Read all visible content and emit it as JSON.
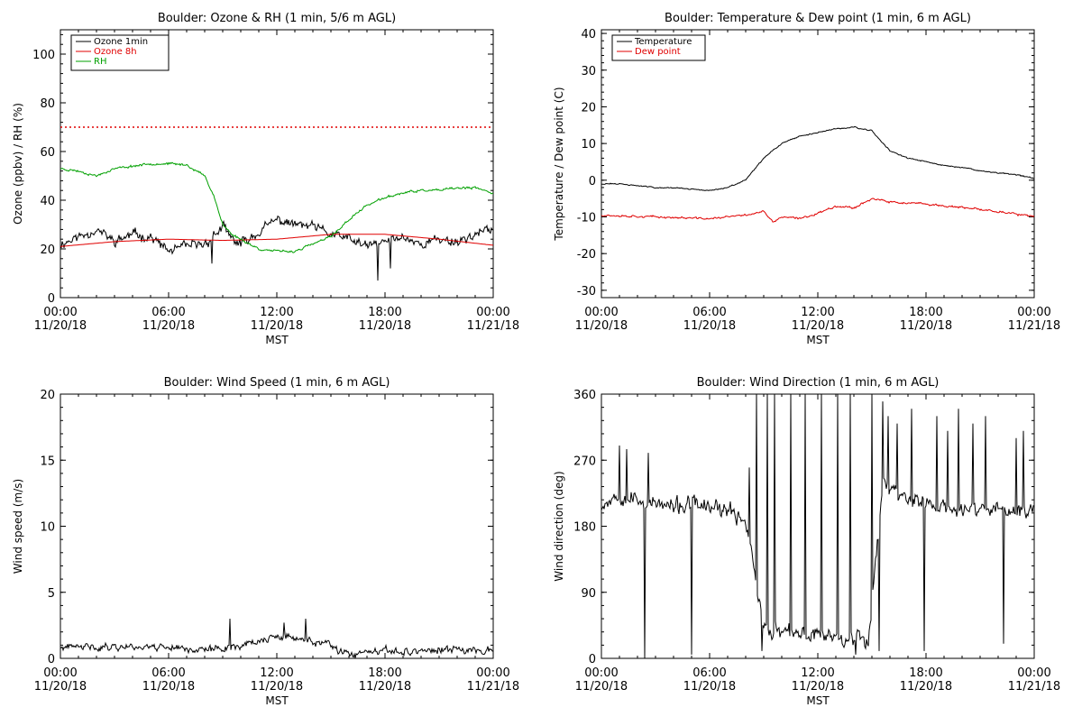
{
  "chart_data": [
    {
      "id": "ozone",
      "type": "line",
      "title": "Boulder: Ozone & RH (1 min, 5/6 m AGL)",
      "xlabel": "MST",
      "ylabel": "Ozone (ppbv) / RH (%)",
      "xlim": [
        0,
        24
      ],
      "ylim": [
        0,
        110
      ],
      "x_ticks": [
        0,
        6,
        12,
        18,
        24
      ],
      "x_tick_labels": [
        [
          "00:00",
          "11/20/18"
        ],
        [
          "06:00",
          "11/20/18"
        ],
        [
          "12:00",
          "11/20/18"
        ],
        [
          "18:00",
          "11/20/18"
        ],
        [
          "00:00",
          "11/21/18"
        ]
      ],
      "y_ticks": [
        0,
        20,
        40,
        60,
        80,
        100
      ],
      "grid": false,
      "legend": "top-left",
      "reference_line": {
        "y": 70,
        "style": "dotted",
        "color": "#e00000"
      },
      "series": [
        {
          "name": "Ozone 1min",
          "color": "#000000",
          "noise": 2.5,
          "seed": 11,
          "spikes": [
            [
              8.4,
              14
            ],
            [
              10.0,
              21
            ],
            [
              17.6,
              7
            ],
            [
              18.3,
              12
            ]
          ],
          "points": [
            [
              0,
              22
            ],
            [
              1,
              25
            ],
            [
              2,
              28
            ],
            [
              3,
              23
            ],
            [
              4,
              26
            ],
            [
              5,
              25
            ],
            [
              6,
              19
            ],
            [
              7,
              21
            ],
            [
              8,
              22
            ],
            [
              9,
              29
            ],
            [
              9.5,
              24
            ],
            [
              10,
              22
            ],
            [
              11,
              27
            ],
            [
              12,
              32
            ],
            [
              13,
              30
            ],
            [
              14,
              29
            ],
            [
              15,
              26
            ],
            [
              16,
              24
            ],
            [
              17,
              21
            ],
            [
              18,
              23
            ],
            [
              19,
              25
            ],
            [
              20,
              22
            ],
            [
              21,
              24
            ],
            [
              22,
              23
            ],
            [
              23,
              26
            ],
            [
              24,
              28
            ]
          ]
        },
        {
          "name": "Ozone 8h",
          "color": "#e00000",
          "noise": 0,
          "seed": 0,
          "points": [
            [
              0,
              21
            ],
            [
              3,
              23
            ],
            [
              6,
              24
            ],
            [
              9,
              23.5
            ],
            [
              12,
              24
            ],
            [
              15,
              26
            ],
            [
              18,
              26
            ],
            [
              21,
              24
            ],
            [
              24,
              21.5
            ]
          ]
        },
        {
          "name": "RH",
          "color": "#00a000",
          "noise": 0.6,
          "seed": 23,
          "points": [
            [
              0,
              53
            ],
            [
              1,
              52
            ],
            [
              2,
              50
            ],
            [
              3,
              53
            ],
            [
              4,
              54
            ],
            [
              5,
              55
            ],
            [
              6,
              55
            ],
            [
              7,
              54.5
            ],
            [
              8,
              50
            ],
            [
              8.5,
              42
            ],
            [
              9,
              30
            ],
            [
              9.5,
              26
            ],
            [
              10,
              24
            ],
            [
              11,
              20
            ],
            [
              12,
              19
            ],
            [
              13,
              19
            ],
            [
              14,
              22
            ],
            [
              15,
              25
            ],
            [
              16,
              32
            ],
            [
              17,
              38
            ],
            [
              18,
              41
            ],
            [
              19,
              43
            ],
            [
              20,
              44
            ],
            [
              21,
              44
            ],
            [
              22,
              45
            ],
            [
              23,
              45
            ],
            [
              24,
              43
            ]
          ]
        }
      ]
    },
    {
      "id": "temp",
      "type": "line",
      "title": "Boulder: Temperature & Dew point (1 min, 6 m AGL)",
      "xlabel": "MST",
      "ylabel": "Temperature / Dew point (C)",
      "xlim": [
        0,
        24
      ],
      "ylim": [
        -32,
        41
      ],
      "x_ticks": [
        0,
        6,
        12,
        18,
        24
      ],
      "x_tick_labels": [
        [
          "00:00",
          "11/20/18"
        ],
        [
          "06:00",
          "11/20/18"
        ],
        [
          "12:00",
          "11/20/18"
        ],
        [
          "18:00",
          "11/20/18"
        ],
        [
          "00:00",
          "11/21/18"
        ]
      ],
      "y_ticks": [
        -30,
        -20,
        -10,
        0,
        10,
        20,
        30,
        40
      ],
      "grid": false,
      "legend": "top-left",
      "series": [
        {
          "name": "Temperature",
          "color": "#000000",
          "noise": 0.2,
          "seed": 31,
          "points": [
            [
              0,
              -1
            ],
            [
              1,
              -1
            ],
            [
              2,
              -1.5
            ],
            [
              3,
              -2
            ],
            [
              4,
              -2
            ],
            [
              5,
              -2.5
            ],
            [
              6,
              -2.8
            ],
            [
              7,
              -2
            ],
            [
              8,
              0
            ],
            [
              9,
              6
            ],
            [
              10,
              10
            ],
            [
              11,
              12
            ],
            [
              12,
              13
            ],
            [
              13,
              14
            ],
            [
              14,
              14.5
            ],
            [
              15,
              13.5
            ],
            [
              16,
              8
            ],
            [
              17,
              6
            ],
            [
              18,
              5
            ],
            [
              19,
              4
            ],
            [
              20,
              3.5
            ],
            [
              21,
              2.5
            ],
            [
              22,
              2
            ],
            [
              23,
              1.5
            ],
            [
              24,
              0.5
            ]
          ]
        },
        {
          "name": "Dew point",
          "color": "#e00000",
          "noise": 0.35,
          "seed": 37,
          "points": [
            [
              0,
              -9.5
            ],
            [
              3,
              -10
            ],
            [
              6,
              -10.5
            ],
            [
              8,
              -9.5
            ],
            [
              9,
              -8.5
            ],
            [
              9.5,
              -11.5
            ],
            [
              10,
              -10
            ],
            [
              11,
              -10.5
            ],
            [
              12,
              -9
            ],
            [
              13,
              -7
            ],
            [
              14,
              -7.5
            ],
            [
              15,
              -5
            ],
            [
              16,
              -6
            ],
            [
              18,
              -6.5
            ],
            [
              20,
              -7.5
            ],
            [
              22,
              -8.5
            ],
            [
              24,
              -10
            ]
          ]
        }
      ]
    },
    {
      "id": "ws",
      "type": "line",
      "title": "Boulder: Wind Speed (1 min, 6 m AGL)",
      "xlabel": "MST",
      "ylabel": "Wind speed (m/s)",
      "xlim": [
        0,
        24
      ],
      "ylim": [
        0,
        20
      ],
      "x_ticks": [
        0,
        6,
        12,
        18,
        24
      ],
      "x_tick_labels": [
        [
          "00:00",
          "11/20/18"
        ],
        [
          "06:00",
          "11/20/18"
        ],
        [
          "12:00",
          "11/20/18"
        ],
        [
          "18:00",
          "11/20/18"
        ],
        [
          "00:00",
          "11/21/18"
        ]
      ],
      "y_ticks": [
        0,
        5,
        10,
        15,
        20
      ],
      "grid": false,
      "series": [
        {
          "name": "",
          "color": "#000000",
          "noise": 0.35,
          "seed": 41,
          "floor": 0,
          "spikes": [
            [
              9.4,
              3.0
            ],
            [
              13.6,
              3.0
            ],
            [
              12.4,
              2.7
            ]
          ],
          "points": [
            [
              0,
              0.8
            ],
            [
              3,
              0.9
            ],
            [
              6,
              0.9
            ],
            [
              8,
              0.6
            ],
            [
              9,
              0.8
            ],
            [
              10,
              1.0
            ],
            [
              11,
              1.3
            ],
            [
              12,
              1.6
            ],
            [
              13,
              1.5
            ],
            [
              14,
              1.3
            ],
            [
              15,
              1.0
            ],
            [
              15.5,
              0.4
            ],
            [
              16,
              0.3
            ],
            [
              18,
              0.5
            ],
            [
              21,
              0.6
            ],
            [
              24,
              0.7
            ]
          ]
        }
      ]
    },
    {
      "id": "wd",
      "type": "line",
      "title": "Boulder: Wind Direction (1 min, 6 m AGL)",
      "xlabel": "MST",
      "ylabel": "Wind direction (deg)",
      "xlim": [
        0,
        24
      ],
      "ylim": [
        0,
        360
      ],
      "x_ticks": [
        0,
        6,
        12,
        18,
        24
      ],
      "x_tick_labels": [
        [
          "00:00",
          "11/20/18"
        ],
        [
          "06:00",
          "11/20/18"
        ],
        [
          "12:00",
          "11/20/18"
        ],
        [
          "18:00",
          "11/20/18"
        ],
        [
          "00:00",
          "11/21/18"
        ]
      ],
      "y_ticks": [
        0,
        90,
        180,
        270,
        360
      ],
      "grid": false,
      "series": [
        {
          "name": "",
          "color": "#000000",
          "noise": 14,
          "seed": 53,
          "floor": 0,
          "ceil": 360,
          "spikes": [
            [
              1.0,
              290
            ],
            [
              1.4,
              285
            ],
            [
              2.4,
              0
            ],
            [
              2.6,
              280
            ],
            [
              5.0,
              5
            ],
            [
              8.2,
              260
            ],
            [
              8.6,
              360
            ],
            [
              8.9,
              10
            ],
            [
              9.2,
              360
            ],
            [
              9.6,
              360
            ],
            [
              10.5,
              360
            ],
            [
              11.3,
              360
            ],
            [
              12.2,
              360
            ],
            [
              13.1,
              360
            ],
            [
              13.8,
              360
            ],
            [
              14.1,
              5
            ],
            [
              15.0,
              360
            ],
            [
              15.4,
              10
            ],
            [
              15.6,
              350
            ],
            [
              15.9,
              330
            ],
            [
              16.4,
              320
            ],
            [
              17.2,
              340
            ],
            [
              17.9,
              10
            ],
            [
              18.6,
              330
            ],
            [
              19.2,
              310
            ],
            [
              19.8,
              340
            ],
            [
              20.6,
              320
            ],
            [
              21.3,
              330
            ],
            [
              22.3,
              20
            ],
            [
              23.0,
              300
            ],
            [
              23.4,
              310
            ]
          ],
          "points": [
            [
              0,
              210
            ],
            [
              1,
              225
            ],
            [
              2,
              215
            ],
            [
              3,
              210
            ],
            [
              4,
              205
            ],
            [
              5,
              210
            ],
            [
              6,
              205
            ],
            [
              7,
              200
            ],
            [
              8,
              190
            ],
            [
              8.5,
              120
            ],
            [
              9,
              40
            ],
            [
              10,
              35
            ],
            [
              11,
              30
            ],
            [
              12,
              35
            ],
            [
              13,
              30
            ],
            [
              14,
              30
            ],
            [
              14.8,
              25
            ],
            [
              15.3,
              160
            ],
            [
              15.6,
              240
            ],
            [
              16,
              230
            ],
            [
              17,
              220
            ],
            [
              18,
              210
            ],
            [
              19,
              205
            ],
            [
              20,
              200
            ],
            [
              21,
              205
            ],
            [
              22,
              200
            ],
            [
              23,
              200
            ],
            [
              24,
              205
            ]
          ]
        }
      ]
    }
  ]
}
